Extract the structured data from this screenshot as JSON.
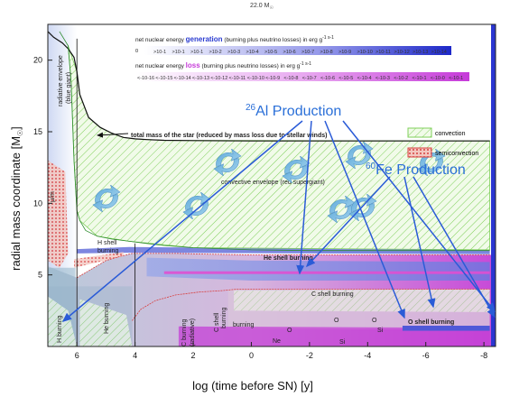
{
  "chart_data": {
    "type": "area",
    "header": "22.0 M",
    "ylabel": "radial mass coordinate [M",
    "ylabel_suffix": "]",
    "xlabel": "log (time before SN) [y]",
    "ylim": [
      0,
      22.5
    ],
    "xlim": [
      7,
      -8.4
    ],
    "yticks": [
      5,
      10,
      15,
      20
    ],
    "xticks": [
      {
        "v": 6,
        "label": "6"
      },
      {
        "v": 4,
        "label": "4"
      },
      {
        "v": 2,
        "label": "2"
      },
      {
        "v": 0,
        "label": "0"
      },
      {
        "v": -2,
        "label": "-2"
      },
      {
        "v": -4,
        "label": "-4"
      },
      {
        "v": -6,
        "label": "-6"
      },
      {
        "v": -8,
        "label": "-8"
      }
    ],
    "total_mass_curve": {
      "x": [
        7,
        6.8,
        6.5,
        6.3,
        6.1,
        6.0,
        5.9,
        5.6,
        5.2,
        4.8,
        4.4,
        4.0,
        3.6,
        3.0,
        2.0,
        0,
        -2,
        -4,
        -6,
        -8.2
      ],
      "y": [
        22,
        21.6,
        21.2,
        20.8,
        20.2,
        19.2,
        17.6,
        16.0,
        15.3,
        14.9,
        14.6,
        14.5,
        14.45,
        14.4,
        14.38,
        14.36,
        14.36,
        14.36,
        14.36,
        14.36
      ]
    },
    "envelope_base_curve": {
      "x": [
        6.6,
        6.3,
        6.2,
        6.1,
        6.0,
        5.9,
        5.7,
        5.3,
        4.8,
        4.2,
        3.6,
        3.0,
        2.0,
        0,
        -2,
        -4,
        -6,
        -8.2
      ],
      "y": [
        22,
        21,
        18.5,
        13,
        9.5,
        8.8,
        8.1,
        7.7,
        7.5,
        7.35,
        7.2,
        7.05,
        6.9,
        6.75,
        6.7,
        6.7,
        6.7,
        6.7
      ]
    },
    "he_core_curve": {
      "x": [
        6.0,
        5.5,
        5.0,
        4.5,
        4.1,
        3.5,
        2.5,
        1.5,
        0,
        -2,
        -4,
        -6,
        -8.2
      ],
      "y": [
        4.8,
        5.4,
        6.0,
        6.3,
        6.5,
        6.5,
        6.5,
        6.45,
        6.4,
        6.4,
        6.4,
        6.4,
        6.4
      ]
    },
    "co_core_curve": {
      "x": [
        4.1,
        3.8,
        3.3,
        2.6,
        1.8,
        1.0,
        0.5,
        0,
        -2,
        -4,
        -6,
        -8.2
      ],
      "y": [
        1.8,
        2.6,
        3.2,
        3.6,
        3.8,
        3.9,
        4.0,
        4.0,
        4.0,
        4.0,
        4.0,
        4.0
      ]
    },
    "legend_generation": {
      "title_pre": "net nuclear energy ",
      "title_key": "generation",
      "title_post": " (burning plus neutrino losses) in erg g",
      "units": "-1 s-1",
      "first": "0",
      "scale": [
        ">10-1",
        ">10-1",
        ">10-1",
        ">10-2",
        ">10-3",
        ">10-4",
        ">10-5",
        ">10-6",
        ">10-7",
        ">10-8",
        ">10-9",
        ">10-10",
        ">10-11",
        ">10-12",
        ">10-13",
        ">10-14"
      ]
    },
    "legend_loss": {
      "title_pre": "net nuclear energy ",
      "title_key": "loss",
      "title_post": " (burning plus neutrino losses) in erg g",
      "units": "-1 s-1",
      "scale": [
        "<-10-16",
        "<-10-15",
        "<-10-14",
        "<-10-13",
        "<-10-12",
        "<-10-11",
        "<-10-10",
        "<-10-9",
        "<-10-8",
        "<-10-7",
        "<-10-6",
        "<-10-5",
        "<-10-4",
        "<-10-3",
        "<-10-2",
        "<-10-1",
        "<-10-0",
        "<-10-1"
      ]
    },
    "legend_mixing": [
      {
        "name": "convection",
        "color": "#7fcf5a"
      },
      {
        "name": "semiconvection",
        "color": "#d84040"
      }
    ],
    "labels": {
      "radiative_envelope": "radiative envelope",
      "blue_giant": "(blue giant)",
      "total_mass": "total mass of the star (reduced by mass loss due to stellar winds)",
      "convective_envelope": "convective envelope (red supergiant)",
      "h_shell": "H shell",
      "h_shell_2": "burning",
      "he_shell": "He shell burning",
      "c_shell": "C shell burning",
      "h_burning": "H burning",
      "he_burning": "He burning",
      "c_burning": "C burning",
      "c_burning_2": "(radiative)",
      "c_shell_v": "C shell",
      "c_shell_v2": "burning",
      "o_shell": "O shell burning",
      "burning": "burning",
      "ne": "Ne",
      "o": "O",
      "si": "Si",
      "side_mark": "μ/m"
    },
    "annotations": {
      "al26": {
        "pre": "26",
        "text": "Al Production"
      },
      "fe60": {
        "pre": "60",
        "text": "Fe Production"
      }
    },
    "colors": {
      "annotation": "#2a6fd8",
      "arrow": "#2a5bd7",
      "convection": "#7fcf5a",
      "semiconvection": "#d84040",
      "loss": "#c63bd9",
      "generation": "#3b46d6"
    }
  }
}
